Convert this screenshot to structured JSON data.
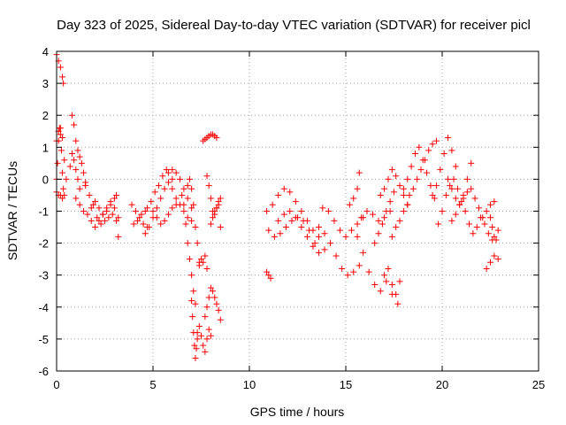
{
  "chart_data": {
    "type": "scatter",
    "title": "Day 323 of 2025, Sidereal Day-to-day VTEC variation (SDTVAR) for receiver picl",
    "xlabel": "GPS time / hours",
    "ylabel": "SDTVAR / TECUs",
    "xlim": [
      0,
      25
    ],
    "ylim": [
      -6,
      4
    ],
    "xticks": [
      "0",
      "5",
      "10",
      "15",
      "20",
      "25"
    ],
    "yticks": [
      "4",
      "3",
      "2",
      "1",
      "0",
      "-1",
      "-2",
      "-3",
      "-4",
      "-5",
      "-6"
    ],
    "grid": true,
    "marker": "+",
    "series": [
      {
        "name": "SDTVAR",
        "color": "#ff0000",
        "segments": [
          {
            "x": [
              0.0,
              0.1,
              0.2,
              0.3,
              0.35
            ],
            "y": [
              3.9,
              3.7,
              3.5,
              3.2,
              3.0
            ]
          },
          {
            "x": [
              0.0,
              0.05,
              0.1,
              0.15,
              0.2,
              0.25,
              0.3,
              0.35,
              0.4
            ],
            "y": [
              0.0,
              0.5,
              1.2,
              1.6,
              1.4,
              0.9,
              0.2,
              -0.3,
              -0.5
            ]
          },
          {
            "x": [
              0.0,
              0.1,
              0.2,
              0.3,
              0.4,
              0.5
            ],
            "y": [
              1.2,
              1.5,
              1.6,
              1.3,
              0.6,
              0.0
            ]
          },
          {
            "x": [
              0.0,
              0.1,
              0.2,
              0.3
            ],
            "y": [
              -0.4,
              -0.5,
              -0.5,
              -0.6
            ]
          },
          {
            "x": [
              0.8,
              0.9,
              1.0,
              1.1,
              1.2,
              1.3,
              1.4,
              1.5
            ],
            "y": [
              2.0,
              1.7,
              1.2,
              0.9,
              0.7,
              0.5,
              0.2,
              -0.1
            ]
          },
          {
            "x": [
              0.7,
              0.8,
              0.9,
              1.0,
              1.1,
              1.2
            ],
            "y": [
              0.4,
              0.8,
              0.6,
              0.3,
              0.0,
              -0.3
            ]
          },
          {
            "x": [
              1.0,
              1.2,
              1.4,
              1.6,
              1.8,
              2.0,
              2.2,
              2.4,
              2.6,
              2.8,
              3.0,
              3.2
            ],
            "y": [
              -0.6,
              -0.8,
              -1.0,
              -1.1,
              -0.9,
              -0.7,
              -0.9,
              -1.1,
              -1.0,
              -0.8,
              -0.9,
              -1.2
            ]
          },
          {
            "x": [
              1.5,
              1.7,
              1.9,
              2.1,
              2.3,
              2.5,
              2.7,
              2.9,
              3.1,
              3.2
            ],
            "y": [
              -0.2,
              -0.5,
              -0.8,
              -1.2,
              -1.4,
              -1.3,
              -1.2,
              -1.1,
              -1.3,
              -1.8
            ]
          },
          {
            "x": [
              1.8,
              2.0,
              2.2,
              2.4,
              2.6,
              2.8,
              3.0,
              3.1
            ],
            "y": [
              -1.3,
              -1.5,
              -1.3,
              -1.1,
              -0.9,
              -0.7,
              -0.6,
              -0.5
            ]
          },
          {
            "x": [
              3.9,
              4.1,
              4.3,
              4.5,
              4.7
            ],
            "y": [
              -0.8,
              -1.0,
              -1.2,
              -1.4,
              -1.5
            ]
          },
          {
            "x": [
              4.0,
              4.2,
              4.4,
              4.6
            ],
            "y": [
              -1.4,
              -1.3,
              -1.1,
              -1.0
            ]
          },
          {
            "x": [
              4.6,
              4.8,
              5.0,
              5.2,
              5.4,
              5.6,
              5.8,
              6.0
            ],
            "y": [
              -1.7,
              -1.5,
              -1.2,
              -0.9,
              -0.6,
              -0.3,
              -0.1,
              0.0
            ]
          },
          {
            "x": [
              4.7,
              4.9,
              5.1,
              5.3,
              5.5,
              5.7
            ],
            "y": [
              -0.9,
              -0.7,
              -0.4,
              -0.2,
              0.1,
              0.3
            ]
          },
          {
            "x": [
              5.0,
              5.2,
              5.4,
              5.6,
              5.8,
              6.0,
              6.2
            ],
            "y": [
              -1.0,
              -1.2,
              -1.4,
              -1.3,
              -1.1,
              -0.9,
              -0.8
            ]
          },
          {
            "x": [
              5.8,
              6.0,
              6.2,
              6.4,
              6.6,
              6.8,
              7.0
            ],
            "y": [
              0.2,
              0.3,
              0.2,
              0.0,
              -0.3,
              -0.6,
              -0.9
            ]
          },
          {
            "x": [
              6.0,
              6.2,
              6.4,
              6.6,
              6.8,
              7.0
            ],
            "y": [
              -0.3,
              -0.6,
              -0.8,
              -1.0,
              -1.2,
              -1.3
            ]
          },
          {
            "x": [
              6.5,
              6.6,
              6.7,
              6.8,
              6.9,
              7.0,
              7.1,
              7.2
            ],
            "y": [
              -0.5,
              -0.8,
              -1.4,
              -2.0,
              -2.5,
              -3.0,
              -3.5,
              -3.9
            ]
          },
          {
            "x": [
              6.8,
              6.9,
              7.0,
              7.1,
              7.2,
              7.3,
              7.4
            ],
            "y": [
              -0.2,
              0.0,
              -0.3,
              -0.8,
              -1.5,
              -2.0,
              -2.6
            ]
          },
          {
            "x": [
              7.0,
              7.05,
              7.1,
              7.15,
              7.2,
              7.25,
              7.3
            ],
            "y": [
              -3.8,
              -4.3,
              -4.8,
              -5.2,
              -5.6,
              -5.3,
              -5.0
            ]
          },
          {
            "x": [
              7.3,
              7.4,
              7.5,
              7.6,
              7.7,
              7.8,
              7.9,
              8.0
            ],
            "y": [
              -4.8,
              -4.6,
              -4.9,
              -5.2,
              -5.4,
              -5.0,
              -4.7,
              -4.9
            ]
          },
          {
            "x": [
              7.4,
              7.5,
              7.6,
              7.7,
              7.8
            ],
            "y": [
              -2.7,
              -2.5,
              -2.6,
              -2.4,
              -2.8
            ]
          },
          {
            "x": [
              7.7,
              7.8,
              7.9,
              8.0,
              8.1,
              8.2,
              8.3,
              8.4,
              8.5
            ],
            "y": [
              -4.3,
              -4.0,
              -3.7,
              -3.4,
              -3.5,
              -3.7,
              -3.9,
              -4.1,
              -4.4
            ]
          },
          {
            "x": [
              7.6,
              7.7,
              7.8,
              7.9,
              8.0,
              8.1,
              8.2,
              8.3
            ],
            "y": [
              1.2,
              1.25,
              1.3,
              1.35,
              1.4,
              1.4,
              1.35,
              1.3
            ]
          },
          {
            "x": [
              7.8,
              7.9,
              8.0,
              8.1,
              8.2,
              8.3,
              8.4,
              8.5
            ],
            "y": [
              0.1,
              -0.2,
              -0.6,
              -1.0,
              -1.1,
              -0.9,
              -0.8,
              -1.5
            ]
          },
          {
            "x": [
              8.0,
              8.1,
              8.2,
              8.3,
              8.4,
              8.5
            ],
            "y": [
              -1.4,
              -1.2,
              -1.0,
              -0.9,
              -0.7,
              -0.6
            ]
          },
          {
            "x": [
              10.9,
              11.0,
              11.1
            ],
            "y": [
              -2.9,
              -3.0,
              -3.1
            ]
          },
          {
            "x": [
              10.9,
              11.2,
              11.5,
              11.8,
              12.1,
              12.4,
              12.7,
              13.0,
              13.3,
              13.6
            ],
            "y": [
              -1.0,
              -0.8,
              -0.5,
              -0.3,
              -0.4,
              -0.7,
              -1.0,
              -1.3,
              -1.6,
              -1.8
            ]
          },
          {
            "x": [
              11.0,
              11.3,
              11.6,
              11.9,
              12.2,
              12.5,
              12.8,
              13.1,
              13.4
            ],
            "y": [
              -1.6,
              -1.8,
              -1.7,
              -1.5,
              -1.3,
              -1.2,
              -1.3,
              -1.6,
              -2.0
            ]
          },
          {
            "x": [
              11.5,
              11.8,
              12.1,
              12.4,
              12.7,
              13.0,
              13.3,
              13.6,
              13.9
            ],
            "y": [
              -1.3,
              -1.1,
              -1.0,
              -1.2,
              -1.5,
              -1.8,
              -2.1,
              -2.3,
              -2.2
            ]
          },
          {
            "x": [
              13.6,
              13.9,
              14.2,
              14.5,
              14.8,
              15.1,
              15.4,
              15.7
            ],
            "y": [
              -1.5,
              -1.7,
              -2.0,
              -2.4,
              -2.8,
              -3.0,
              -2.9,
              -2.7
            ]
          },
          {
            "x": [
              13.8,
              14.1,
              14.4,
              14.7,
              15.0,
              15.3,
              15.6,
              15.9
            ],
            "y": [
              -0.9,
              -1.0,
              -1.3,
              -1.6,
              -1.8,
              -1.6,
              -1.4,
              -1.2
            ]
          },
          {
            "x": [
              15.2,
              15.4,
              15.6,
              15.7
            ],
            "y": [
              -0.8,
              -0.6,
              -0.3,
              0.2
            ]
          },
          {
            "x": [
              15.6,
              15.9,
              16.2,
              16.5,
              16.8,
              17.1,
              17.4,
              17.7
            ],
            "y": [
              -1.8,
              -2.3,
              -2.9,
              -3.3,
              -3.5,
              -3.2,
              -3.6,
              -3.9
            ]
          },
          {
            "x": [
              15.8,
              16.1,
              16.4,
              16.7,
              17.0,
              17.3
            ],
            "y": [
              -1.2,
              -1.0,
              -1.1,
              -1.3,
              -1.2,
              -1.0
            ]
          },
          {
            "x": [
              16.5,
              16.7,
              16.9,
              17.1,
              17.3,
              17.5
            ],
            "y": [
              -2.0,
              -1.7,
              -1.4,
              -1.0,
              -0.7,
              -0.4
            ]
          },
          {
            "x": [
              16.8,
              17.0,
              17.2,
              17.4,
              17.6,
              17.8,
              18.0,
              18.2
            ],
            "y": [
              -0.5,
              -0.3,
              0.0,
              0.3,
              0.1,
              -0.2,
              -0.5,
              -0.8
            ]
          },
          {
            "x": [
              17.4,
              17.6,
              17.8,
              18.0,
              18.2
            ],
            "y": [
              -1.8,
              -1.5,
              -1.3,
              -1.0,
              -0.8
            ]
          },
          {
            "x": [
              17.0,
              17.2,
              17.4,
              17.6,
              17.8
            ],
            "y": [
              -3.0,
              -2.8,
              -3.3,
              -3.6,
              -3.2
            ]
          },
          {
            "x": [
              18.0,
              18.2,
              18.4,
              18.6,
              18.8,
              19.0,
              19.2,
              19.4,
              19.6
            ],
            "y": [
              -0.3,
              0.0,
              0.4,
              0.8,
              1.0,
              0.6,
              0.2,
              -0.2,
              -0.6
            ]
          },
          {
            "x": [
              18.3,
              18.5,
              18.7,
              18.9,
              19.1,
              19.3,
              19.5,
              19.7
            ],
            "y": [
              -0.5,
              -0.3,
              0.0,
              0.3,
              0.6,
              0.9,
              1.1,
              1.2
            ]
          },
          {
            "x": [
              19.5,
              19.7,
              19.9,
              20.1,
              20.3,
              20.5,
              20.7
            ],
            "y": [
              -0.5,
              -0.2,
              0.3,
              0.8,
              1.3,
              0.9,
              0.4
            ]
          },
          {
            "x": [
              19.8,
              20.0,
              20.2,
              20.4,
              20.6,
              20.8
            ],
            "y": [
              -1.4,
              -1.0,
              -0.5,
              -0.2,
              0.0,
              -0.3
            ]
          },
          {
            "x": [
              20.3,
              20.5,
              20.7,
              20.9,
              21.1,
              21.3,
              21.5
            ],
            "y": [
              0.0,
              -0.3,
              -0.6,
              -0.8,
              -0.5,
              0.0,
              0.5
            ]
          },
          {
            "x": [
              20.5,
              20.7,
              20.9,
              21.1,
              21.3
            ],
            "y": [
              -1.3,
              -1.1,
              -0.8,
              -0.6,
              -0.4
            ]
          },
          {
            "x": [
              21.0,
              21.2,
              21.4,
              21.6,
              21.8,
              22.0,
              22.2,
              22.4,
              22.6
            ],
            "y": [
              -0.7,
              -1.0,
              -1.4,
              -1.7,
              -1.5,
              -1.2,
              -1.4,
              -1.7,
              -1.9
            ]
          },
          {
            "x": [
              21.5,
              21.7,
              21.9,
              22.1,
              22.3,
              22.5,
              22.7
            ],
            "y": [
              -0.3,
              -0.6,
              -0.9,
              -1.2,
              -1.0,
              -0.8,
              -0.7
            ]
          },
          {
            "x": [
              22.3,
              22.5,
              22.7,
              22.9
            ],
            "y": [
              -2.8,
              -2.6,
              -2.4,
              -2.5
            ]
          },
          {
            "x": [
              22.5,
              22.6,
              22.7,
              22.8,
              22.9
            ],
            "y": [
              -1.2,
              -1.5,
              -1.8,
              -1.9,
              -1.6
            ]
          }
        ]
      }
    ]
  }
}
